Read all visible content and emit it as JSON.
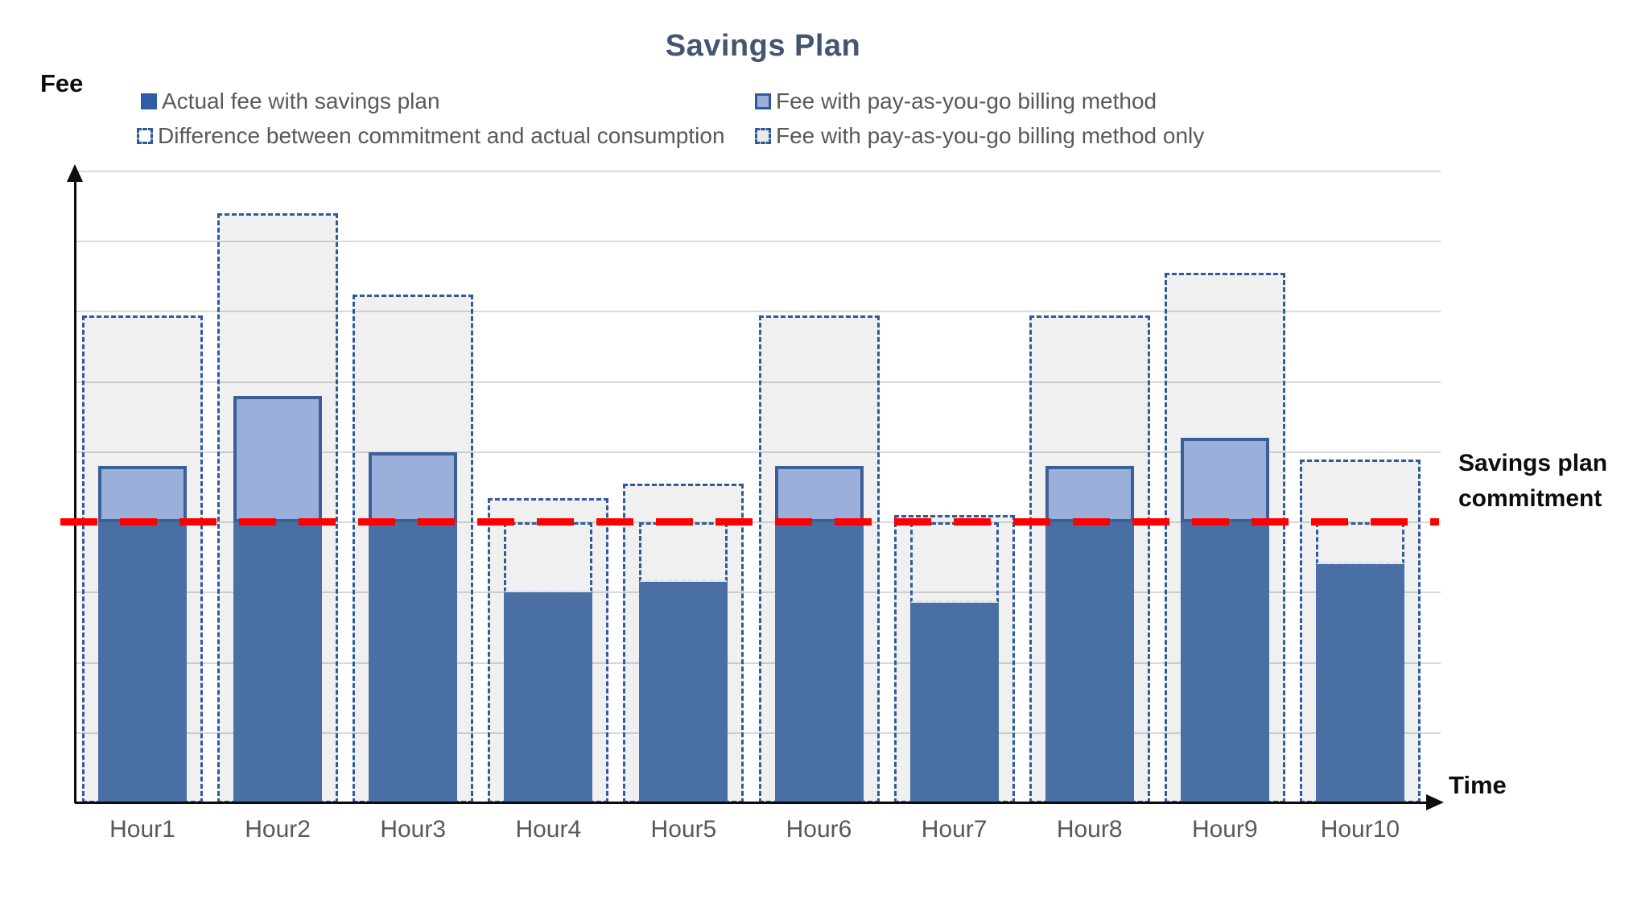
{
  "title": "Savings Plan",
  "axes": {
    "y_label": "Fee",
    "x_label": "Time"
  },
  "annotation": {
    "commitment_label": "Savings plan commitment"
  },
  "legend": [
    {
      "label": "Actual fee with savings plan",
      "marker": "solid-blue-square"
    },
    {
      "label": "Fee with pay-as-you-go billing method",
      "marker": "light-blue-bordered-square"
    },
    {
      "label": "Difference between commitment and actual consumption",
      "marker": "dashed-outline-white-square"
    },
    {
      "label": "Fee with pay-as-you-go billing method only",
      "marker": "dashed-outline-gray-square"
    }
  ],
  "colors": {
    "bar_dark_blue": "#4a6fa5",
    "bar_light_blue": "#9aafd9",
    "solid_border_blue": "#3a6097",
    "dashed_border_blue": "#2f5b9c",
    "legend_solid_blue": "#2e5ca6",
    "gray_fill": "#efefef",
    "gridline": "#d9d9d9",
    "commitment_red": "#fe0000",
    "title_color": "#425670",
    "text_gray": "#595959"
  },
  "chart_data": {
    "type": "bar",
    "title": "Savings Plan",
    "xlabel": "Time",
    "ylabel": "Fee",
    "categories": [
      "Hour1",
      "Hour2",
      "Hour3",
      "Hour4",
      "Hour5",
      "Hour6",
      "Hour7",
      "Hour8",
      "Hour9",
      "Hour10"
    ],
    "ylim": [
      0,
      9
    ],
    "gridlines": "horizontal every 1 unit, no tick labels",
    "legend_position": "top",
    "commitment_line": {
      "value": 4.0,
      "label": "Savings plan commitment",
      "style": "thick red dashed horizontal line"
    },
    "series": [
      {
        "name": "Actual fee with savings plan",
        "note": "solid dark blue bar from 0; capped at commitment 4.0 when consumption exceeds commitment",
        "values": [
          4,
          4,
          4,
          3,
          3.15,
          4,
          2.85,
          4,
          4,
          3.4
        ]
      },
      {
        "name": "Fee with pay-as-you-go billing method",
        "note": "light blue bordered segment stacked from commitment 4.0 up to listed top value; null when under commitment",
        "top_values": [
          4.8,
          5.8,
          5.0,
          null,
          null,
          4.8,
          null,
          4.8,
          5.2,
          null
        ]
      },
      {
        "name": "Difference between commitment and actual consumption",
        "note": "narrow dashed-outline gap between actual bar top and commitment line",
        "values": [
          0,
          0,
          0,
          1.0,
          0.85,
          0,
          1.15,
          0,
          0,
          0.6
        ]
      },
      {
        "name": "Fee with pay-as-you-go billing method only",
        "note": "wide dashed-outline gray bar from 0 to listed value",
        "values": [
          6.95,
          8.4,
          7.25,
          4.35,
          4.55,
          6.95,
          4.1,
          6.95,
          7.55,
          4.9
        ]
      }
    ]
  }
}
